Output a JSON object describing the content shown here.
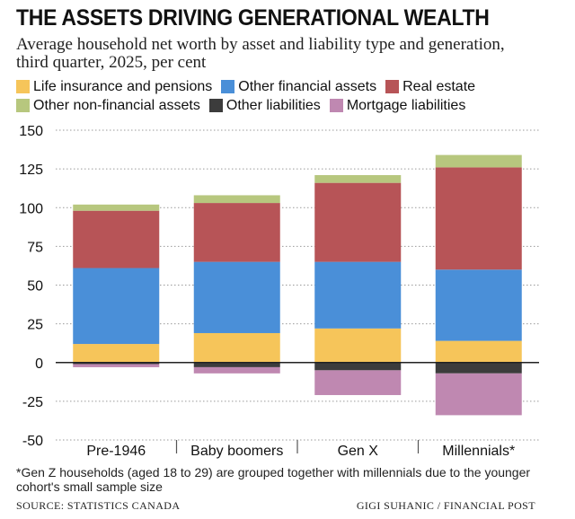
{
  "header": {
    "title": "THE ASSETS DRIVING GENERATIONAL WEALTH",
    "subtitle": "Average household net worth by asset and liability type and generation, third quarter, 2025, per cent"
  },
  "chart_data": {
    "type": "bar",
    "stacked": true,
    "categories": [
      "Pre-1946",
      "Baby boomers",
      "Gen X",
      "Millennials*"
    ],
    "ylim": [
      -50,
      150
    ],
    "yticks": [
      150,
      125,
      100,
      75,
      50,
      25,
      0,
      -25,
      -50
    ],
    "ytick_labels": [
      "150",
      "125",
      "100",
      "75",
      "50",
      "25",
      "0",
      "-25",
      "-50"
    ],
    "grid": true,
    "legend_placement": "top",
    "series": [
      {
        "name": "Life insurance and pensions",
        "color": "#f6c55a",
        "values": [
          12,
          19,
          22,
          14
        ]
      },
      {
        "name": "Other financial assets",
        "color": "#4a8fd8",
        "values": [
          49,
          46,
          43,
          46
        ]
      },
      {
        "name": "Real estate",
        "color": "#b75457",
        "values": [
          37,
          38,
          51,
          66
        ]
      },
      {
        "name": "Other non-financial assets",
        "color": "#b7c77e",
        "values": [
          4,
          5,
          5,
          8
        ]
      },
      {
        "name": "Other liabilities",
        "color": "#3c3c3c",
        "values": [
          -1,
          -3,
          -5,
          -7
        ]
      },
      {
        "name": "Mortgage liabilities",
        "color": "#bf88b1",
        "values": [
          -2,
          -4,
          -16,
          -27
        ]
      }
    ]
  },
  "footer": {
    "footnote": "*Gen Z households (aged 18 to 29) are grouped together with millennials due to the younger cohort's small sample size",
    "source": "SOURCE: STATISTICS CANADA",
    "credit": "GIGI SUHANIC / FINANCIAL POST"
  }
}
